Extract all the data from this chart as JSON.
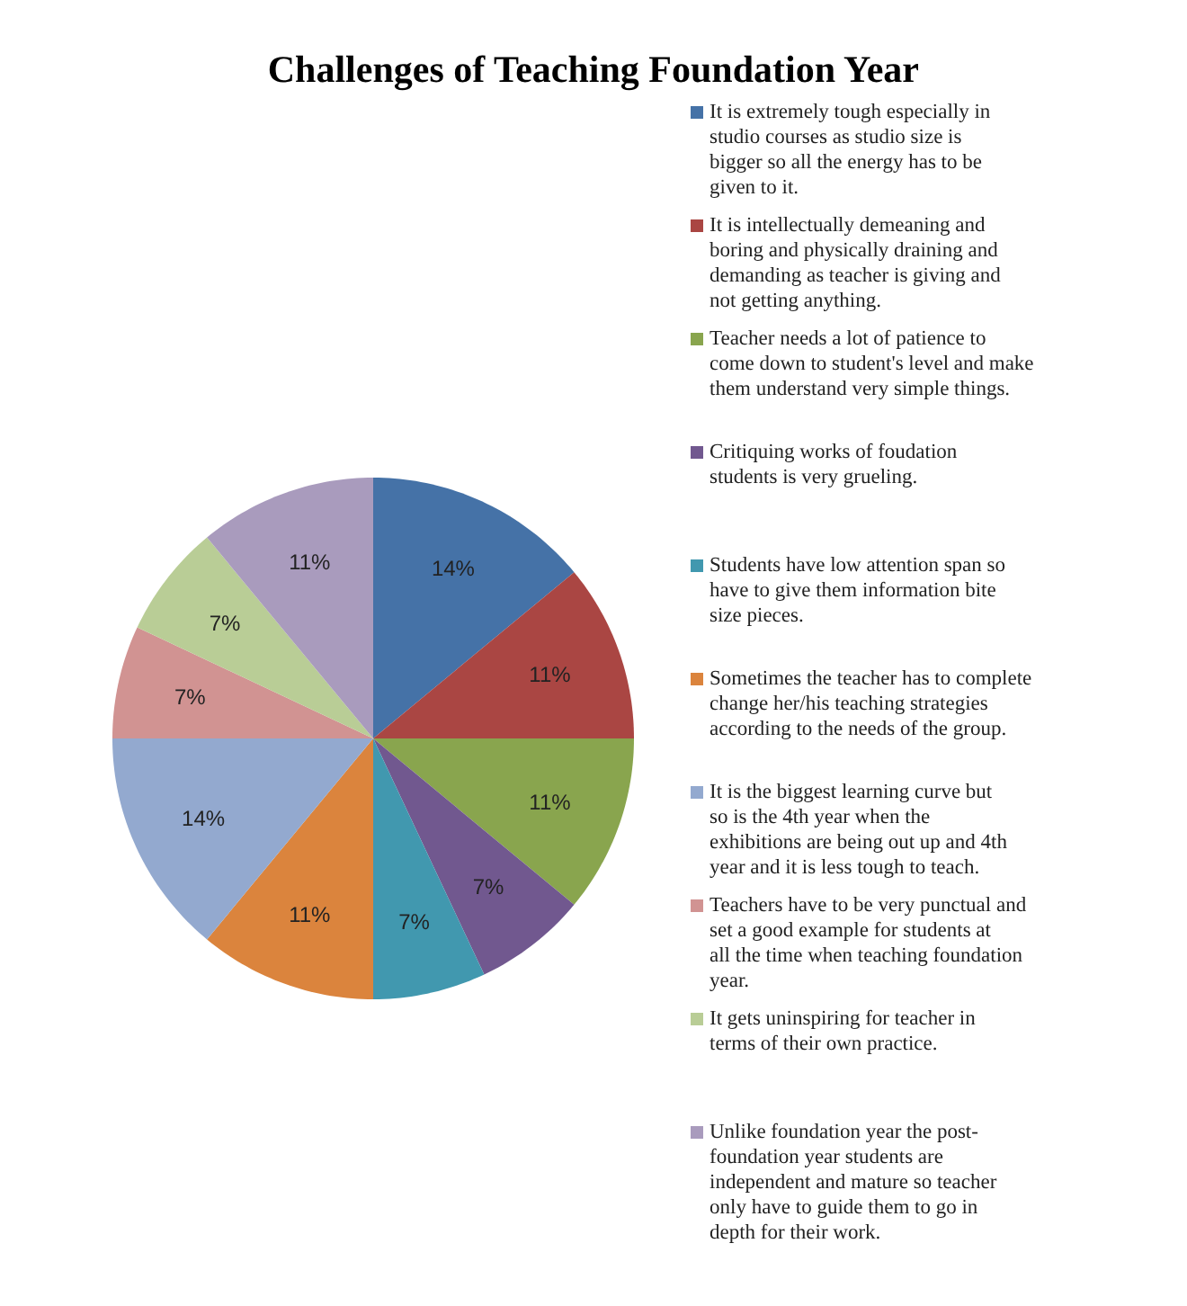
{
  "chart_data": {
    "type": "pie",
    "title": "Challenges of Teaching Foundation Year",
    "categories": [
      "It is extremely tough especially in studio courses as studio size is bigger so all the energy has to be given to it.",
      "It is  intellectually demeaning and boring and physically draining and demanding as teacher is giving and not getting anything.",
      "Teacher needs a lot of patience to come down to student's level and make them understand very simple things.",
      "Critiquing works of foudation students is very grueling.",
      "Students have low attention span so have to give them information bite size pieces.",
      "Sometimes the teacher has to complete change her/his teaching strategies according to the needs of the group.",
      "It is the biggest learning curve but so is the 4th year when the exhibitions are being out up and 4th year and it is less tough to teach.",
      "Teachers have to be very punctual and set a good example for students at all the time when teaching foundation year.",
      "It gets uninspiring for teacher in terms of their own practice.",
      "Unlike foundation year the post-foundation year students are independent and mature so teacher only have to guide them to go in depth for their work."
    ],
    "values": [
      14,
      11,
      11,
      7,
      7,
      11,
      14,
      7,
      7,
      11
    ],
    "value_labels": [
      "14%",
      "11%",
      "11%",
      "7%",
      "7%",
      "11%",
      "14%",
      "7%",
      "7%",
      "11%"
    ],
    "colors": [
      "#4572a7",
      "#aa4643",
      "#89a54e",
      "#71588f",
      "#4198af",
      "#db843d",
      "#93a9cf",
      "#d19392",
      "#b9cd96",
      "#a99bbd"
    ],
    "legend": "right"
  }
}
